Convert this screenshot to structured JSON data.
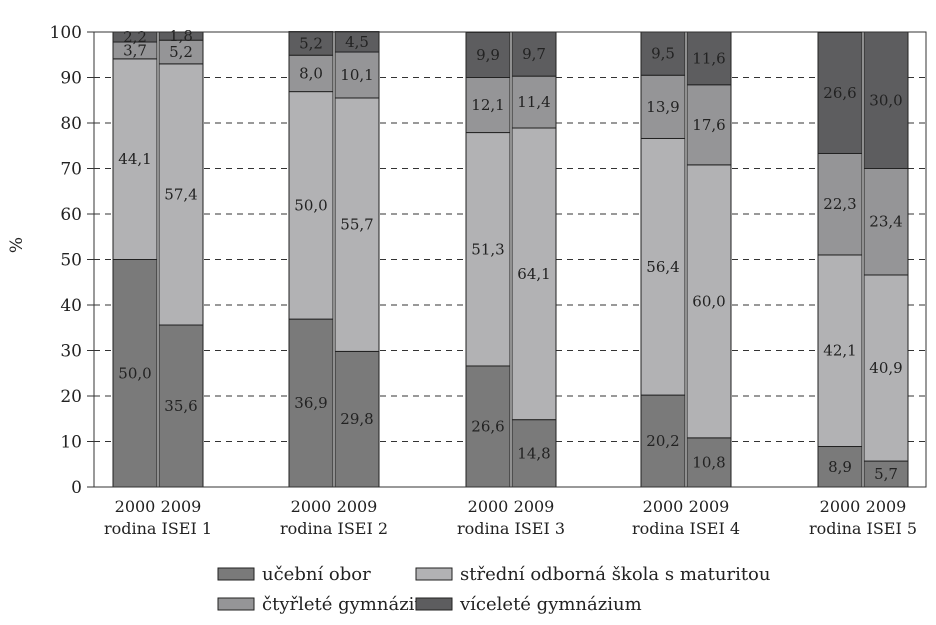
{
  "chart_data": {
    "type": "bar",
    "stacked": true,
    "ylabel": "%",
    "ylim": [
      0,
      100
    ],
    "yticks": [
      0,
      10,
      20,
      30,
      40,
      50,
      60,
      70,
      80,
      90,
      100
    ],
    "grid": "horizontal-dashed",
    "legend_position": "bottom",
    "groups": [
      {
        "label": "rodina ISEI 1",
        "bars": [
          "2000",
          "2009"
        ]
      },
      {
        "label": "rodina ISEI 2",
        "bars": [
          "2000",
          "2009"
        ]
      },
      {
        "label": "rodina ISEI 3",
        "bars": [
          "2000",
          "2009"
        ]
      },
      {
        "label": "rodina ISEI 4",
        "bars": [
          "2000",
          "2009"
        ]
      },
      {
        "label": "rodina ISEI 5",
        "bars": [
          "2000",
          "2009"
        ]
      }
    ],
    "series": [
      {
        "name": "učební obor",
        "color": "#7a7a7a",
        "values": [
          50.0,
          35.6,
          36.9,
          29.8,
          26.6,
          14.8,
          20.2,
          10.8,
          8.9,
          5.7
        ],
        "labels": [
          "50,0",
          "35,6",
          "36,9",
          "29,8",
          "26,6",
          "14,8",
          "20,2",
          "10,8",
          "8,9",
          "5,7"
        ]
      },
      {
        "name": "střední odborná škola s maturitou",
        "color": "#b2b2b4",
        "values": [
          44.1,
          57.4,
          50.0,
          55.7,
          51.3,
          64.1,
          56.4,
          60.0,
          42.1,
          40.9
        ],
        "labels": [
          "44,1",
          "57,4",
          "50,0",
          "55,7",
          "51,3",
          "64,1",
          "56,4",
          "60,0",
          "42,1",
          "40,9"
        ]
      },
      {
        "name": "čtyřleté gymnázium",
        "color": "#959597",
        "values": [
          3.7,
          5.2,
          8.0,
          10.1,
          12.1,
          11.4,
          13.9,
          17.6,
          22.3,
          23.4
        ],
        "labels": [
          "3,7",
          "5,2",
          "8,0",
          "10,1",
          "12,1",
          "11,4",
          "13,9",
          "17,6",
          "22,3",
          "23,4"
        ]
      },
      {
        "name": "víceleté gymnázium",
        "color": "#5d5d5f",
        "values": [
          2.2,
          1.8,
          5.2,
          4.5,
          9.9,
          9.7,
          9.5,
          11.6,
          26.6,
          30.0
        ],
        "labels": [
          "2,2",
          "1,8",
          "5,2",
          "4,5",
          "9,9",
          "9,7",
          "9,5",
          "11,6",
          "26,6",
          "30,0"
        ]
      }
    ],
    "legend_rows": [
      [
        "učební obor",
        "střední odborná škola s maturitou"
      ],
      [
        "čtyřleté gymnázium",
        "víceleté gymnázium"
      ]
    ]
  }
}
